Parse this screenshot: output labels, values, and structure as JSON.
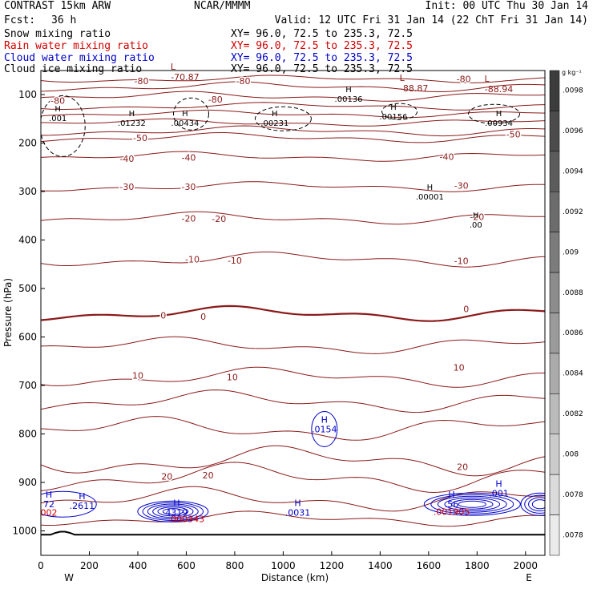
{
  "header": {
    "model": "CONTRAST 15km ARW",
    "center": "NCAR/MMMM",
    "init": "Init: 00 UTC Thu 30 Jan 14",
    "fcst_label": "Fcst:",
    "fcst_value": "36 h",
    "valid": "Valid: 12 UTC Fri 31 Jan 14 (22 ChT Fri 31 Jan 14)",
    "fields": [
      {
        "name": "Snow mixing ratio",
        "xy": "XY=  96.0, 72.5 to 235.3, 72.5",
        "color": "#000000"
      },
      {
        "name": "Rain water mixing ratio",
        "xy": "XY=  96.0, 72.5 to 235.3, 72.5",
        "color": "#d00000"
      },
      {
        "name": "Cloud water mixing ratio",
        "xy": "XY=  96.0, 72.5 to 235.3, 72.5",
        "color": "#0000c8"
      },
      {
        "name": "Cloud ice mixing ratio",
        "xy": "XY=  96.0, 72.5 to 235.3, 72.5",
        "color": "#000000"
      }
    ]
  },
  "colors": {
    "temperature": "#8b1a1a",
    "cloud_water": "#0000c8",
    "rain": "#d00000",
    "snow": "#000000",
    "ground": "#000000"
  },
  "chart_data": {
    "type": "cross-section contour",
    "xlabel": "Distance (km)",
    "ylabel": "Pressure (hPa)",
    "xlim": [
      0,
      2080
    ],
    "ylim": [
      1050,
      50
    ],
    "x_ticks": [
      0,
      200,
      400,
      600,
      800,
      1000,
      1200,
      1400,
      1600,
      1800,
      2000
    ],
    "y_ticks": [
      100,
      200,
      300,
      400,
      500,
      600,
      700,
      800,
      900,
      1000
    ],
    "endpoints": {
      "left": "W",
      "right": "E"
    },
    "temperature_isotherms": [
      {
        "value": -80,
        "labels": [
          {
            "x": 70,
            "p": 112,
            "text": "-80"
          },
          {
            "x": 415,
            "p": 72,
            "text": "-80"
          },
          {
            "x": 720,
            "p": 110,
            "text": "-80"
          },
          {
            "x": 835,
            "p": 72,
            "text": "-80"
          },
          {
            "x": 1745,
            "p": 68,
            "text": "-80"
          }
        ]
      },
      {
        "value": -50,
        "labels": [
          {
            "x": 410,
            "p": 189,
            "text": "-50"
          },
          {
            "x": 1950,
            "p": 182,
            "text": "-50"
          }
        ]
      },
      {
        "value": -40,
        "labels": [
          {
            "x": 355,
            "p": 232,
            "text": "-40"
          },
          {
            "x": 610,
            "p": 230,
            "text": "-40"
          },
          {
            "x": 1675,
            "p": 228,
            "text": "-40"
          }
        ]
      },
      {
        "value": -30,
        "labels": [
          {
            "x": 355,
            "p": 290,
            "text": "-30"
          },
          {
            "x": 610,
            "p": 290,
            "text": "-30"
          },
          {
            "x": 1735,
            "p": 288,
            "text": "-30"
          }
        ]
      },
      {
        "value": -20,
        "labels": [
          {
            "x": 610,
            "p": 355,
            "text": "-20"
          },
          {
            "x": 735,
            "p": 356,
            "text": "-20"
          },
          {
            "x": 1800,
            "p": 352,
            "text": "-20"
          }
        ]
      },
      {
        "value": -10,
        "labels": [
          {
            "x": 625,
            "p": 440,
            "text": "-10"
          },
          {
            "x": 800,
            "p": 442,
            "text": "-10"
          },
          {
            "x": 1735,
            "p": 443,
            "text": "-10"
          }
        ]
      },
      {
        "value": 0,
        "labels": [
          {
            "x": 505,
            "p": 555,
            "text": "0"
          },
          {
            "x": 670,
            "p": 558,
            "text": "0"
          },
          {
            "x": 1755,
            "p": 542,
            "text": "0"
          }
        ]
      },
      {
        "value": 10,
        "labels": [
          {
            "x": 400,
            "p": 679,
            "text": "10"
          },
          {
            "x": 790,
            "p": 683,
            "text": "10"
          },
          {
            "x": 1725,
            "p": 663,
            "text": "10"
          }
        ]
      },
      {
        "value": 20,
        "labels": [
          {
            "x": 520,
            "p": 888,
            "text": "20"
          },
          {
            "x": 690,
            "p": 885,
            "text": "20"
          },
          {
            "x": 1740,
            "p": 868,
            "text": "20"
          }
        ]
      }
    ],
    "temperature_minima": [
      {
        "x": 595,
        "p": 62,
        "marker": "L",
        "value": "-70.87"
      },
      {
        "x": 1540,
        "p": 85,
        "marker": "L",
        "value": "-88.87"
      },
      {
        "x": 1890,
        "p": 87,
        "marker": "L",
        "value": "-88.94"
      }
    ],
    "snow_maxima": [
      {
        "x": 70,
        "p": 148,
        "value": ".001"
      },
      {
        "x": 375,
        "p": 158,
        "value": ".01232"
      },
      {
        "x": 595,
        "p": 158,
        "value": ".00434"
      },
      {
        "x": 965,
        "p": 158,
        "value": ".00231"
      },
      {
        "x": 1270,
        "p": 108,
        "value": ".00136"
      },
      {
        "x": 1455,
        "p": 145,
        "value": ".00156"
      },
      {
        "x": 1890,
        "p": 158,
        "value": ".00934"
      },
      {
        "x": 1605,
        "p": 310,
        "value": ".00001"
      },
      {
        "x": 1795,
        "p": 368,
        "value": ".00"
      }
    ],
    "cloud_water_maxima": [
      {
        "x": 1170,
        "p": 790,
        "value": ".0154"
      },
      {
        "x": 170,
        "p": 948,
        "value": ".2611"
      },
      {
        "x": 560,
        "p": 962,
        "value": "4319"
      },
      {
        "x": 1060,
        "p": 962,
        "value": ".0031"
      },
      {
        "x": 1695,
        "p": 945,
        "value": ".56"
      },
      {
        "x": 1890,
        "p": 922,
        "value": ".001"
      },
      {
        "x": 0,
        "p": 945,
        "value": "72"
      }
    ],
    "rain_maxima": [
      {
        "x": 0,
        "p": 962,
        "value": "002"
      },
      {
        "x": 600,
        "p": 975,
        "value": ".000343"
      },
      {
        "x": 1695,
        "p": 960,
        "value": ".001905"
      }
    ],
    "colorbar": {
      "unit": "g kg⁻¹",
      "values": [
        ".0098",
        ".0096",
        ".0094",
        ".0092",
        ".009",
        ".0088",
        ".0086",
        ".0084",
        ".0082",
        ".008",
        ".0078",
        ".0078"
      ]
    }
  }
}
